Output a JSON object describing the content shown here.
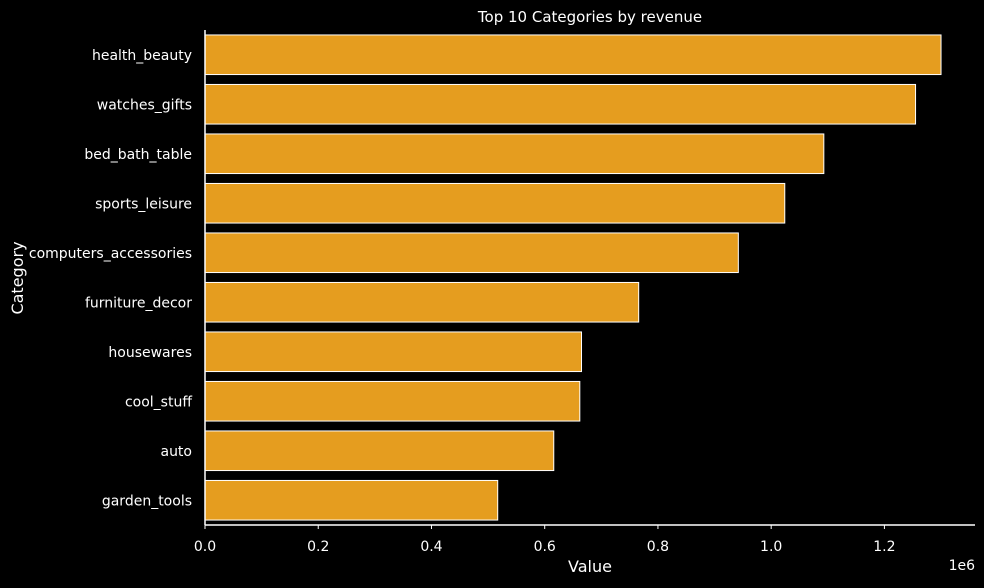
{
  "chart_data": {
    "type": "bar",
    "orientation": "horizontal",
    "title": "Top 10 Categories by revenue",
    "xlabel": "Value",
    "ylabel": "Category",
    "x_offset_label": "1e6",
    "categories": [
      "health_beauty",
      "watches_gifts",
      "bed_bath_table",
      "sports_leisure",
      "computers_accessories",
      "furniture_decor",
      "housewares",
      "cool_stuff",
      "auto",
      "garden_tools"
    ],
    "values": [
      1300000,
      1255000,
      1093000,
      1024000,
      942000,
      766000,
      665000,
      662000,
      616000,
      517000
    ],
    "xlim": [
      0,
      1360000
    ],
    "xticks": [
      0,
      200000,
      400000,
      600000,
      800000,
      1000000,
      1200000
    ],
    "xtick_labels": [
      "0.0",
      "0.2",
      "0.4",
      "0.6",
      "0.8",
      "1.0",
      "1.2"
    ],
    "grid": false,
    "colors": {
      "background": "#000000",
      "bar_fill": "#e59d1f",
      "bar_edge": "#ffffff",
      "text": "#ffffff",
      "axis": "#ffffff"
    }
  }
}
